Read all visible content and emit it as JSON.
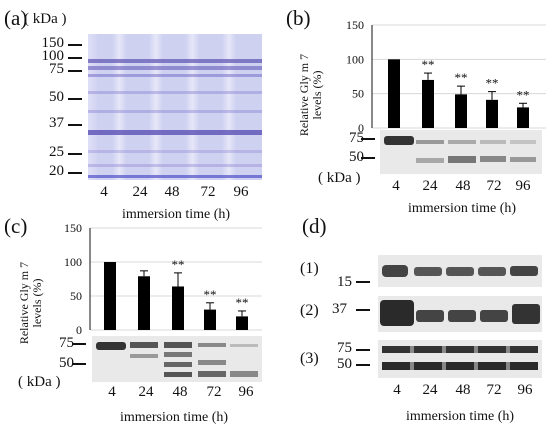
{
  "panel_a": {
    "label": "(a)",
    "kda_label": "( kDa )",
    "markers": [
      "150",
      "100",
      "75",
      "50",
      "37",
      "25",
      "20"
    ],
    "lanes": [
      "4",
      "24",
      "48",
      "72",
      "96"
    ],
    "xlabel": "immersion time (h)"
  },
  "panel_b": {
    "label": "(b)",
    "ylabel_line1": "Relative Gly m 7",
    "ylabel_line2": "levels (%)",
    "yticks": [
      "150",
      "100",
      "50",
      "0"
    ],
    "blot_markers": [
      "75",
      "50"
    ],
    "kda_label": "( kDa )",
    "lanes": [
      "4",
      "24",
      "48",
      "72",
      "96"
    ],
    "xlabel": "immersion time (h)",
    "chart_data": {
      "type": "bar",
      "categories": [
        "4",
        "24",
        "48",
        "72",
        "96"
      ],
      "values": [
        100,
        70,
        49,
        41,
        30
      ],
      "errors": [
        0,
        10,
        12,
        12,
        6
      ],
      "significance": [
        "",
        "**",
        "**",
        "**",
        "**"
      ],
      "ylim": [
        0,
        150
      ],
      "ylabel": "Relative Gly m 7 levels (%)",
      "xlabel": "immersion time (h)"
    }
  },
  "panel_c": {
    "label": "(c)",
    "ylabel_line1": "Relative Gly m 7",
    "ylabel_line2": "levels (%)",
    "yticks": [
      "150",
      "100",
      "50",
      "0"
    ],
    "blot_markers": [
      "75",
      "50"
    ],
    "kda_label": "( kDa )",
    "lanes": [
      "4",
      "24",
      "48",
      "72",
      "96"
    ],
    "xlabel": "immersion time (h)",
    "chart_data": {
      "type": "bar",
      "categories": [
        "4",
        "24",
        "48",
        "72",
        "96"
      ],
      "values": [
        100,
        79,
        64,
        30,
        20
      ],
      "errors": [
        0,
        8,
        20,
        10,
        8
      ],
      "significance": [
        "",
        "",
        "**",
        "**",
        "**"
      ],
      "ylim": [
        0,
        150
      ],
      "ylabel": "Relative Gly m 7 levels (%)",
      "xlabel": "immersion time (h)"
    }
  },
  "panel_d": {
    "label": "(d)",
    "rows": [
      {
        "label": "(1)",
        "markers": [
          "15"
        ]
      },
      {
        "label": "(2)",
        "markers": [
          "37"
        ]
      },
      {
        "label": "(3)",
        "markers": [
          "75",
          "50"
        ]
      }
    ],
    "lanes": [
      "4",
      "24",
      "48",
      "72",
      "96"
    ],
    "xlabel": "immersion time (h)"
  }
}
